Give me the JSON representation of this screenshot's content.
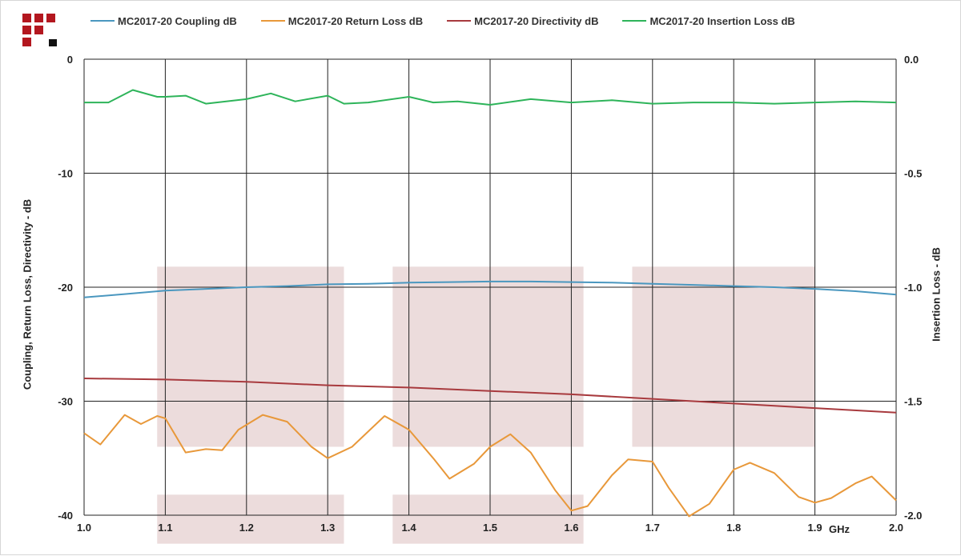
{
  "logo": {
    "name": "company-logo",
    "colors": {
      "red": "#b3171f",
      "black": "#111111"
    }
  },
  "chart_data": {
    "type": "line",
    "x_unit_label": "GHz",
    "ylabel_left": "Coupling, Return Loss, Directivity - dB",
    "ylabel_right": "Insertion Loss - dB",
    "xlim": [
      1.0,
      2.0
    ],
    "ylim_left": [
      -40,
      0
    ],
    "ylim_right": [
      -2.0,
      0.0
    ],
    "x_ticks": [
      "1.0",
      "1.1",
      "1.2",
      "1.3",
      "1.4",
      "1.5",
      "1.6",
      "1.7",
      "1.8",
      "1.9",
      "2.0"
    ],
    "y_left_ticks": [
      "0",
      "-10",
      "-20",
      "-30",
      "-40"
    ],
    "y_right_ticks": [
      "0.0",
      "-0.5",
      "-1.0",
      "-1.5",
      "-2.0"
    ],
    "grid": true,
    "legend_position": "top",
    "highlight_color": "#ecdcdc",
    "highlight_bands": [
      {
        "x": [
          1.09,
          1.32
        ],
        "y": [
          -18.2,
          -34.0
        ]
      },
      {
        "x": [
          1.38,
          1.615
        ],
        "y": [
          -18.2,
          -34.0
        ]
      },
      {
        "x": [
          1.675,
          1.9
        ],
        "y": [
          -18.2,
          -34.0
        ]
      },
      {
        "x": [
          1.09,
          1.32
        ],
        "y": [
          -38.2,
          -42.5
        ]
      },
      {
        "x": [
          1.38,
          1.615
        ],
        "y": [
          -38.2,
          -42.5
        ]
      }
    ],
    "series": [
      {
        "name": "MC2017-20 Coupling dB",
        "axis": "left",
        "color": "#4a97bf",
        "x": [
          1.0,
          1.05,
          1.1,
          1.15,
          1.2,
          1.25,
          1.3,
          1.35,
          1.4,
          1.45,
          1.5,
          1.55,
          1.6,
          1.65,
          1.7,
          1.75,
          1.8,
          1.85,
          1.9,
          1.95,
          2.0
        ],
        "y": [
          -20.9,
          -20.6,
          -20.3,
          -20.15,
          -20.0,
          -19.9,
          -19.75,
          -19.7,
          -19.6,
          -19.55,
          -19.5,
          -19.5,
          -19.55,
          -19.6,
          -19.7,
          -19.8,
          -19.9,
          -20.0,
          -20.15,
          -20.35,
          -20.65
        ]
      },
      {
        "name": "MC2017-20 Return Loss dB",
        "axis": "left",
        "color": "#e8983a",
        "x": [
          1.0,
          1.02,
          1.05,
          1.07,
          1.09,
          1.1,
          1.125,
          1.15,
          1.17,
          1.19,
          1.22,
          1.25,
          1.28,
          1.3,
          1.33,
          1.37,
          1.4,
          1.43,
          1.45,
          1.48,
          1.5,
          1.525,
          1.55,
          1.58,
          1.6,
          1.62,
          1.65,
          1.67,
          1.7,
          1.72,
          1.745,
          1.77,
          1.8,
          1.82,
          1.85,
          1.88,
          1.9,
          1.92,
          1.95,
          1.97,
          2.0
        ],
        "y": [
          -32.8,
          -33.8,
          -31.2,
          -32.0,
          -31.3,
          -31.5,
          -34.5,
          -34.2,
          -34.3,
          -32.5,
          -31.2,
          -31.8,
          -34.0,
          -35.0,
          -34.0,
          -31.3,
          -32.5,
          -35.0,
          -36.8,
          -35.5,
          -34.0,
          -32.9,
          -34.5,
          -37.8,
          -39.6,
          -39.2,
          -36.5,
          -35.1,
          -35.3,
          -37.6,
          -40.1,
          -39.0,
          -36.0,
          -35.4,
          -36.3,
          -38.4,
          -38.9,
          -38.5,
          -37.2,
          -36.6,
          -38.7
        ]
      },
      {
        "name": "MC2017-20 Directivity dB",
        "axis": "left",
        "color": "#a83a3e",
        "x": [
          1.0,
          1.1,
          1.2,
          1.3,
          1.4,
          1.5,
          1.6,
          1.7,
          1.8,
          1.9,
          2.0
        ],
        "y": [
          -28.0,
          -28.1,
          -28.3,
          -28.6,
          -28.8,
          -29.1,
          -29.4,
          -29.8,
          -30.2,
          -30.6,
          -31.0
        ]
      },
      {
        "name": "MC2017-20 Insertion Loss dB",
        "axis": "right",
        "color": "#2eb45a",
        "x": [
          1.0,
          1.03,
          1.06,
          1.09,
          1.1,
          1.125,
          1.15,
          1.2,
          1.23,
          1.26,
          1.3,
          1.32,
          1.35,
          1.4,
          1.43,
          1.46,
          1.5,
          1.55,
          1.6,
          1.65,
          1.7,
          1.75,
          1.8,
          1.85,
          1.9,
          1.95,
          2.0
        ],
        "y": [
          -0.19,
          -0.19,
          -0.135,
          -0.165,
          -0.165,
          -0.16,
          -0.195,
          -0.175,
          -0.15,
          -0.185,
          -0.16,
          -0.195,
          -0.19,
          -0.165,
          -0.19,
          -0.185,
          -0.2,
          -0.175,
          -0.19,
          -0.18,
          -0.195,
          -0.19,
          -0.19,
          -0.195,
          -0.19,
          -0.185,
          -0.19
        ]
      }
    ]
  }
}
